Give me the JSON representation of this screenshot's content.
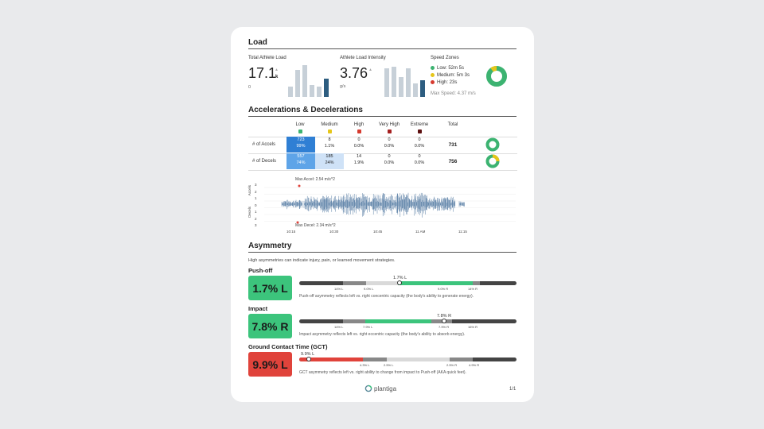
{
  "load": {
    "title": "Load",
    "total": {
      "label": "Total Athlete Load",
      "value": "17.1",
      "unit": "k",
      "axis_zero": "0",
      "bars": [
        0.3,
        0.8,
        0.95,
        0.35,
        0.3,
        0.55
      ]
    },
    "intensity": {
      "label": "Athlete Load Intensity",
      "value": "3.76",
      "unit": "g/s",
      "bars": [
        0.85,
        0.9,
        0.6,
        0.85,
        0.4,
        0.5
      ]
    },
    "speed_zones": {
      "label": "Speed Zones",
      "zones": [
        {
          "label": "Low: 52m 5s",
          "color": "#3cb371"
        },
        {
          "label": "Medium: 5m 3s",
          "color": "#e6c619"
        },
        {
          "label": "High: 23s",
          "color": "#d63a2f"
        }
      ],
      "max_speed": "Max Speed: 4.37 m/s",
      "donut_fractions": [
        0.9,
        0.09,
        0.01
      ]
    }
  },
  "accel": {
    "title": "Accelerations & Decelerations",
    "headers": [
      {
        "label": "Low",
        "color": "#3cb371"
      },
      {
        "label": "Medium",
        "color": "#e6c619"
      },
      {
        "label": "High",
        "color": "#d63a2f"
      },
      {
        "label": "Very High",
        "color": "#a52020"
      },
      {
        "label": "Extreme",
        "color": "#5c0f0f"
      }
    ],
    "total_header": "Total",
    "rows": [
      {
        "label": "# of Accels",
        "cells": [
          [
            "723",
            "99%"
          ],
          [
            "8",
            "1.1%"
          ],
          [
            "0",
            "0.0%"
          ],
          [
            "0",
            "0.0%"
          ],
          [
            "0",
            "0.0%"
          ]
        ],
        "total": "731",
        "donut": [
          0.99,
          0.01
        ]
      },
      {
        "label": "# of Decels",
        "cells": [
          [
            "557",
            "74%"
          ],
          [
            "185",
            "24%"
          ],
          [
            "14",
            "1.9%"
          ],
          [
            "0",
            "0.0%"
          ],
          [
            "0",
            "0.0%"
          ]
        ],
        "total": "756",
        "donut": [
          0.74,
          0.24,
          0.02
        ]
      }
    ],
    "timeline": {
      "max_accel": "Max Accel: 2.54 m/s^2",
      "max_decel": "Max Decel: 2.34 m/s^2",
      "y_labels_top": [
        "3",
        "2",
        "1",
        "0"
      ],
      "y_labels_bottom": [
        "1",
        "2",
        "3"
      ],
      "y_axis_accel": "Accels",
      "y_axis_decel": "Decels",
      "x_labels": [
        "10:15",
        "10:30",
        "10:45",
        "11 AM",
        "11:15"
      ]
    }
  },
  "asymmetry": {
    "title": "Asymmetry",
    "intro": "High asymmetries can indicate injury, pain, or learned movement strategies.",
    "metrics": [
      {
        "name": "Push-off",
        "value": "1.7% L",
        "color": "#3cc47c",
        "marker_label": "1.7% L",
        "ticks": [
          "14% L",
          "9.0% L",
          "9.0% R",
          "14% R"
        ],
        "description": "Push-off asymmetry reflects left vs. right concentric capacity (the body's ability to generate energy).",
        "position": 0.47
      },
      {
        "name": "Impact",
        "value": "7.8% R",
        "color": "#3cc47c",
        "marker_label": "7.8% R",
        "ticks": [
          "14% L",
          "7.9% L",
          "7.9% R",
          "16% R"
        ],
        "description": "Impact asymmetry reflects left vs. right eccentric capacity (the body's ability to absorb energy).",
        "position": 0.7
      },
      {
        "name": "Ground Contact Time (GCT)",
        "value": "9.9% L",
        "color": "#e0433b",
        "marker_label": "9.9% L",
        "ticks": [
          "4.3% L",
          "2.5% L",
          "2.5% R",
          "4.9% R"
        ],
        "description": "GCT asymmetry reflects left vs. right ability to change from impact to Push-off (AKA quick feet).",
        "position": 0.04
      }
    ]
  },
  "footer": {
    "brand": "plantiga",
    "page": "1/1"
  }
}
